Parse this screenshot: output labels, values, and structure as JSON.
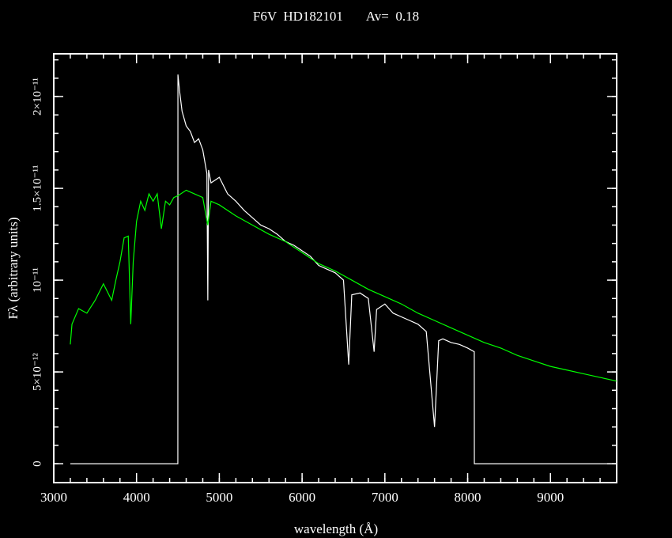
{
  "chart_data": {
    "type": "line",
    "title": "F6V  HD182101       Av=  0.18",
    "xlabel": "wavelength (Å)",
    "ylabel": "Fλ (arbitrary units)",
    "xlim": [
      3000,
      9800
    ],
    "ylim": [
      -1.03e-12,
      2.233e-11
    ],
    "xticks": [
      3000,
      4000,
      5000,
      6000,
      7000,
      8000,
      9000
    ],
    "yticks": [
      0,
      {
        "value": 5e-12,
        "label": "5×10⁻¹²"
      },
      {
        "value": 1e-11,
        "label": "10⁻¹¹"
      },
      {
        "value": 1.5e-11,
        "label": "1.5×10⁻¹¹"
      },
      {
        "value": 2e-11,
        "label": "2×10⁻¹¹"
      }
    ],
    "series": [
      {
        "color": "#ffffff",
        "x": [
          3200,
          4499,
          4500,
          4520,
          4550,
          4600,
          4650,
          4700,
          4750,
          4800,
          4850,
          4861,
          4870,
          4900,
          5000,
          5100,
          5200,
          5300,
          5400,
          5500,
          5600,
          5700,
          5800,
          5900,
          6000,
          6100,
          6200,
          6300,
          6400,
          6500,
          6563,
          6600,
          6700,
          6800,
          6870,
          6900,
          7000,
          7100,
          7200,
          7300,
          7400,
          7500,
          7600,
          7650,
          7700,
          7800,
          7900,
          8000,
          8080,
          8081,
          9800
        ],
        "values": [
          0,
          0,
          2.12e-11,
          2.03e-11,
          1.92e-11,
          1.84e-11,
          1.81e-11,
          1.75e-11,
          1.77e-11,
          1.71e-11,
          1.58e-11,
          8.9e-12,
          1.6e-11,
          1.53e-11,
          1.56e-11,
          1.47e-11,
          1.43e-11,
          1.38e-11,
          1.34e-11,
          1.3e-11,
          1.28e-11,
          1.25e-11,
          1.21e-11,
          1.19e-11,
          1.16e-11,
          1.13e-11,
          1.08e-11,
          1.06e-11,
          1.04e-11,
          1e-11,
          5.4e-12,
          9.2e-12,
          9.3e-12,
          9e-12,
          6.1e-12,
          8.4e-12,
          8.7e-12,
          8.2e-12,
          8e-12,
          7.8e-12,
          7.6e-12,
          7.2e-12,
          2e-12,
          6.7e-12,
          6.8e-12,
          6.6e-12,
          6.5e-12,
          6.3e-12,
          6.1e-12,
          0,
          0
        ]
      },
      {
        "color": "#00ff00",
        "x": [
          3200,
          3220,
          3300,
          3400,
          3500,
          3600,
          3700,
          3750,
          3800,
          3850,
          3900,
          3930,
          3960,
          4000,
          4050,
          4100,
          4150,
          4200,
          4250,
          4300,
          4350,
          4400,
          4450,
          4500,
          4600,
          4700,
          4800,
          4860,
          4900,
          5000,
          5200,
          5400,
          5600,
          5800,
          6000,
          6200,
          6400,
          6600,
          6800,
          7000,
          7200,
          7400,
          7600,
          7800,
          8000,
          8200,
          8400,
          8600,
          8800,
          9000,
          9200,
          9400,
          9600,
          9800
        ],
        "values": [
          6.5e-12,
          7.6e-12,
          8.45e-12,
          8.2e-12,
          8.9e-12,
          9.8e-12,
          8.9e-12,
          1e-11,
          1.1e-11,
          1.23e-11,
          1.24e-11,
          7.6e-12,
          1.1e-11,
          1.32e-11,
          1.43e-11,
          1.38e-11,
          1.47e-11,
          1.43e-11,
          1.47e-11,
          1.28e-11,
          1.43e-11,
          1.41e-11,
          1.45e-11,
          1.46e-11,
          1.49e-11,
          1.47e-11,
          1.45e-11,
          1.3e-11,
          1.43e-11,
          1.41e-11,
          1.35e-11,
          1.3e-11,
          1.25e-11,
          1.21e-11,
          1.15e-11,
          1.09e-11,
          1.05e-11,
          1e-11,
          9.5e-12,
          9.1e-12,
          8.7e-12,
          8.2e-12,
          7.8e-12,
          7.4e-12,
          7e-12,
          6.6e-12,
          6.3e-12,
          5.9e-12,
          5.6e-12,
          5.3e-12,
          5.1e-12,
          4.9e-12,
          4.7e-12,
          4.5e-12
        ]
      }
    ]
  }
}
